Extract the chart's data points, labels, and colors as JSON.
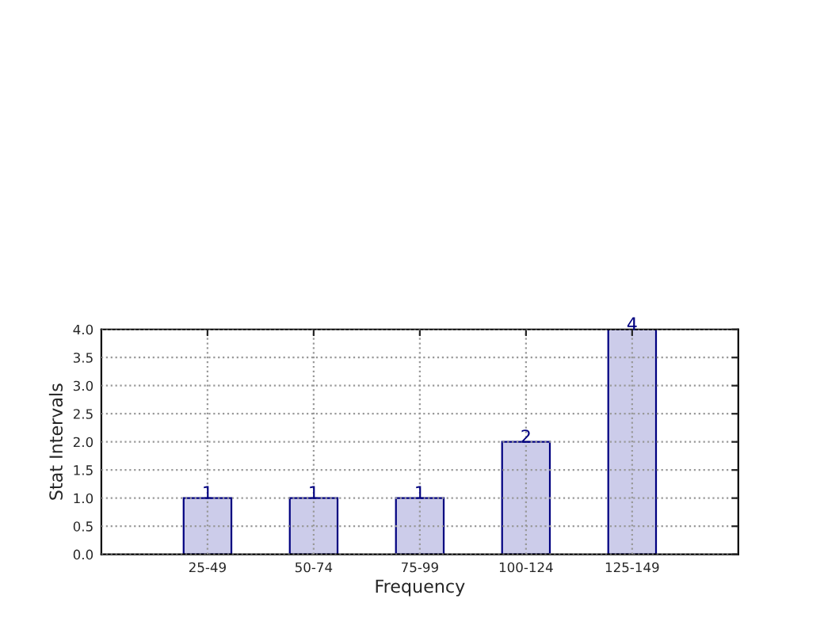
{
  "chart_data": {
    "type": "bar",
    "xlabel": "Frequency",
    "ylabel": "Stat Intervals",
    "categories": [
      "25-49",
      "50-74",
      "75-99",
      "100-124",
      "125-149"
    ],
    "values": [
      1,
      1,
      1,
      2,
      4
    ],
    "color": "#ccccea",
    "data_labels": true,
    "grid": true,
    "ylim": [
      0,
      4
    ],
    "yticks": [
      {
        "value": 0,
        "label": "0.0"
      },
      {
        "value": 0.5,
        "label": "0.5"
      },
      {
        "value": 1,
        "label": "1.0"
      },
      {
        "value": 1.5,
        "label": "1.5"
      },
      {
        "value": 2,
        "label": "2.0"
      },
      {
        "value": 2.5,
        "label": "2.5"
      },
      {
        "value": 3,
        "label": "3.0"
      },
      {
        "value": 3.5,
        "label": "3.5"
      },
      {
        "value": 4,
        "label": "4.0"
      }
    ]
  }
}
